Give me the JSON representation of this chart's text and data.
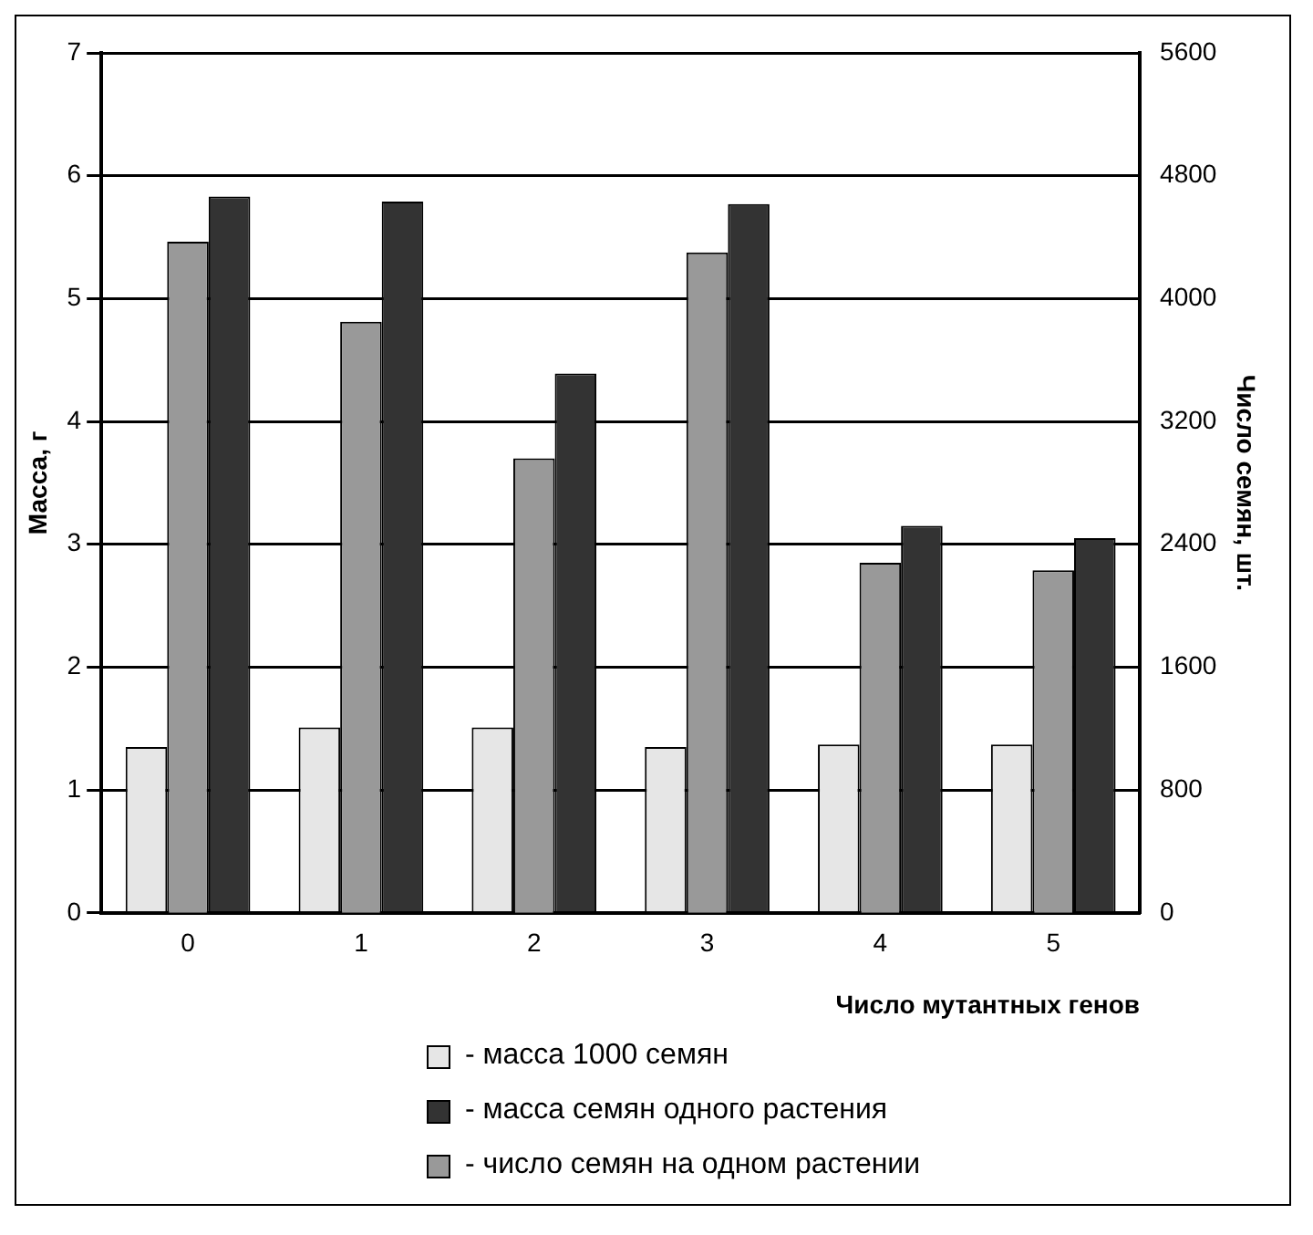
{
  "chart_data": {
    "type": "bar",
    "xlabel": "Число мутантных генов",
    "ylabel": "Масса, г",
    "y2label": "Число семян, шт.",
    "categories": [
      "0",
      "1",
      "2",
      "3",
      "4",
      "5"
    ],
    "series": [
      {
        "name": "- масса 1000 семян",
        "color": "#e6e6e6",
        "values": [
          1.35,
          1.51,
          1.51,
          1.35,
          1.37,
          1.37
        ]
      },
      {
        "name": "- масса семян одного растения",
        "color": "#333333",
        "values": [
          5.83,
          5.79,
          4.39,
          5.77,
          3.15,
          3.05
        ]
      },
      {
        "name": "- число семян на одном растении",
        "color": "#999999",
        "axis": "y2",
        "values": [
          4370,
          3850,
          2960,
          4300,
          2280,
          2230
        ]
      }
    ],
    "ylim": [
      0,
      7
    ],
    "yticks": [
      0,
      1,
      2,
      3,
      4,
      5,
      6,
      7
    ],
    "y2lim": [
      0,
      5600
    ],
    "y2ticks": [
      0,
      800,
      1600,
      2400,
      3200,
      4000,
      4800,
      5600
    ],
    "grid": "y",
    "legend": "bottom"
  }
}
